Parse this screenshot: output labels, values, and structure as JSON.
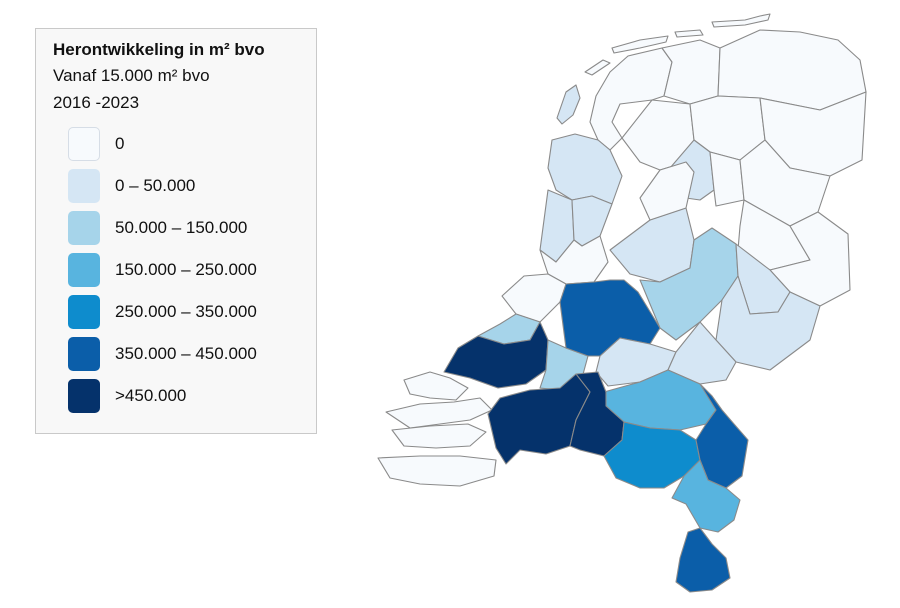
{
  "legend": {
    "title": "Herontwikkeling in m² bvo",
    "subtitle": "Vanaf 15.000 m² bvo",
    "period": "2016 -2023",
    "classes": [
      {
        "label": "0",
        "color": "#f7fafd"
      },
      {
        "label": "0 – 50.000",
        "color": "#d5e6f4"
      },
      {
        "label": "50.000 – 150.000",
        "color": "#a6d4ea"
      },
      {
        "label": "150.000 – 250.000",
        "color": "#58b4df"
      },
      {
        "label": "250.000 – 350.000",
        "color": "#0e8ccd"
      },
      {
        "label": "350.000 – 450.000",
        "color": "#0b5ea9"
      },
      {
        "label": ">450.000",
        "color": "#05326b"
      }
    ]
  }
}
